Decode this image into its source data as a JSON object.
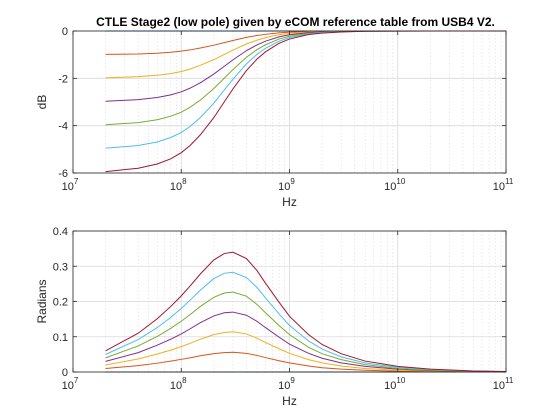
{
  "chart_data": [
    {
      "type": "line",
      "title": "CTLE Stage2 (low pole) given by eCOM reference table from USB4 V2.",
      "xlabel": "Hz",
      "ylabel": "dB",
      "xscale": "log",
      "xlim": [
        10000000,
        100000000000
      ],
      "ylim": [
        -6,
        0
      ],
      "yticks": [
        0,
        -2,
        -4,
        -6
      ],
      "yticklabels": [
        "0",
        "-2",
        "-4",
        "-6"
      ],
      "xticks": [
        {
          "base": "10",
          "exp": "7"
        },
        {
          "base": "10",
          "exp": "8"
        },
        {
          "base": "10",
          "exp": "9"
        },
        {
          "base": "10",
          "exp": "10"
        },
        {
          "base": "10",
          "exp": "11"
        }
      ],
      "grid": true,
      "x": [
        20000000,
        40000000,
        60000000,
        80000000,
        100000000,
        120000000,
        150000000,
        200000000,
        250000000,
        300000000,
        400000000,
        500000000,
        600000000,
        800000000,
        1000000000,
        1500000000,
        2000000000,
        3000000000,
        5000000000,
        10000000000,
        20000000000,
        50000000000,
        100000000000
      ],
      "series": [
        {
          "color": "#0072BD",
          "values": [
            0,
            0,
            0,
            0,
            0,
            0,
            0,
            0,
            0,
            0,
            0,
            0,
            0,
            0,
            0,
            0,
            0,
            0,
            0,
            0,
            0,
            0,
            0
          ]
        },
        {
          "color": "#D95319",
          "values": [
            -0.99,
            -0.97,
            -0.94,
            -0.9,
            -0.85,
            -0.8,
            -0.72,
            -0.6,
            -0.49,
            -0.4,
            -0.27,
            -0.19,
            -0.14,
            -0.08,
            -0.05,
            -0.02,
            -0.01,
            -0.005,
            -0.002,
            0,
            0,
            0,
            0
          ]
        },
        {
          "color": "#EDB120",
          "values": [
            -1.98,
            -1.93,
            -1.87,
            -1.8,
            -1.71,
            -1.61,
            -1.45,
            -1.21,
            -0.99,
            -0.81,
            -0.55,
            -0.39,
            -0.28,
            -0.16,
            -0.1,
            -0.05,
            -0.03,
            -0.01,
            -0.004,
            -0.001,
            0,
            0,
            0
          ]
        },
        {
          "color": "#7E2F8E",
          "values": [
            -2.97,
            -2.9,
            -2.81,
            -2.7,
            -2.57,
            -2.42,
            -2.19,
            -1.82,
            -1.49,
            -1.22,
            -0.83,
            -0.59,
            -0.43,
            -0.25,
            -0.16,
            -0.07,
            -0.04,
            -0.02,
            -0.006,
            -0.002,
            0,
            0,
            0
          ]
        },
        {
          "color": "#77AC30",
          "values": [
            -3.96,
            -3.87,
            -3.75,
            -3.6,
            -3.43,
            -3.23,
            -2.92,
            -2.43,
            -1.99,
            -1.63,
            -1.11,
            -0.79,
            -0.58,
            -0.34,
            -0.22,
            -0.1,
            -0.06,
            -0.02,
            -0.008,
            -0.002,
            0,
            0,
            0
          ]
        },
        {
          "color": "#4DBEEE",
          "values": [
            -4.95,
            -4.84,
            -4.69,
            -4.5,
            -4.29,
            -4.04,
            -3.66,
            -3.05,
            -2.49,
            -2.04,
            -1.39,
            -0.99,
            -0.73,
            -0.43,
            -0.28,
            -0.12,
            -0.07,
            -0.03,
            -0.01,
            -0.003,
            0,
            0,
            0
          ]
        },
        {
          "color": "#A2142F",
          "values": [
            -5.94,
            -5.8,
            -5.62,
            -5.4,
            -5.14,
            -4.85,
            -4.39,
            -3.66,
            -2.99,
            -2.45,
            -1.67,
            -1.19,
            -0.88,
            -0.52,
            -0.34,
            -0.15,
            -0.09,
            -0.04,
            -0.012,
            -0.003,
            0,
            0,
            0
          ]
        }
      ]
    },
    {
      "type": "line",
      "title": "",
      "xlabel": "Hz",
      "ylabel": "Radians",
      "xscale": "log",
      "xlim": [
        10000000,
        100000000000
      ],
      "ylim": [
        0,
        0.4
      ],
      "yticks": [
        0,
        0.1,
        0.2,
        0.3,
        0.4
      ],
      "yticklabels": [
        "0",
        "0.1",
        "0.2",
        "0.3",
        "0.4"
      ],
      "xticks": [
        {
          "base": "10",
          "exp": "7"
        },
        {
          "base": "10",
          "exp": "8"
        },
        {
          "base": "10",
          "exp": "9"
        },
        {
          "base": "10",
          "exp": "10"
        },
        {
          "base": "10",
          "exp": "11"
        }
      ],
      "grid": true,
      "x": [
        20000000,
        40000000,
        60000000,
        80000000,
        100000000,
        120000000,
        150000000,
        200000000,
        250000000,
        300000000,
        400000000,
        500000000,
        600000000,
        800000000,
        1000000000,
        1500000000,
        2000000000,
        3000000000,
        5000000000,
        10000000000,
        20000000000,
        50000000000,
        100000000000
      ],
      "series": [
        {
          "color": "#0072BD",
          "values": [
            0,
            0,
            0,
            0,
            0,
            0,
            0,
            0,
            0,
            0,
            0,
            0,
            0,
            0,
            0,
            0,
            0,
            0,
            0,
            0,
            0,
            0,
            0
          ]
        },
        {
          "color": "#D95319",
          "values": [
            0.01,
            0.018,
            0.025,
            0.031,
            0.036,
            0.04,
            0.046,
            0.052,
            0.055,
            0.056,
            0.053,
            0.047,
            0.041,
            0.032,
            0.026,
            0.017,
            0.012,
            0.008,
            0.005,
            0.002,
            0.001,
            0.0005,
            0.0002
          ]
        },
        {
          "color": "#EDB120",
          "values": [
            0.02,
            0.037,
            0.051,
            0.062,
            0.072,
            0.081,
            0.093,
            0.106,
            0.112,
            0.114,
            0.108,
            0.096,
            0.084,
            0.066,
            0.053,
            0.035,
            0.026,
            0.017,
            0.01,
            0.005,
            0.003,
            0.001,
            0.0005
          ]
        },
        {
          "color": "#7E2F8E",
          "values": [
            0.03,
            0.055,
            0.076,
            0.093,
            0.108,
            0.122,
            0.14,
            0.159,
            0.168,
            0.17,
            0.161,
            0.144,
            0.126,
            0.099,
            0.079,
            0.053,
            0.039,
            0.026,
            0.016,
            0.008,
            0.004,
            0.002,
            0.001
          ]
        },
        {
          "color": "#77AC30",
          "values": [
            0.04,
            0.074,
            0.101,
            0.124,
            0.144,
            0.162,
            0.186,
            0.212,
            0.224,
            0.227,
            0.215,
            0.192,
            0.168,
            0.132,
            0.106,
            0.07,
            0.052,
            0.035,
            0.021,
            0.01,
            0.005,
            0.002,
            0.001
          ]
        },
        {
          "color": "#4DBEEE",
          "values": [
            0.05,
            0.092,
            0.126,
            0.155,
            0.18,
            0.203,
            0.232,
            0.265,
            0.28,
            0.283,
            0.268,
            0.24,
            0.21,
            0.165,
            0.132,
            0.088,
            0.065,
            0.043,
            0.026,
            0.013,
            0.007,
            0.003,
            0.001
          ]
        },
        {
          "color": "#A2142F",
          "values": [
            0.06,
            0.11,
            0.151,
            0.186,
            0.216,
            0.243,
            0.278,
            0.318,
            0.336,
            0.34,
            0.322,
            0.288,
            0.252,
            0.198,
            0.158,
            0.106,
            0.078,
            0.052,
            0.031,
            0.016,
            0.008,
            0.003,
            0.0015
          ]
        }
      ]
    }
  ]
}
